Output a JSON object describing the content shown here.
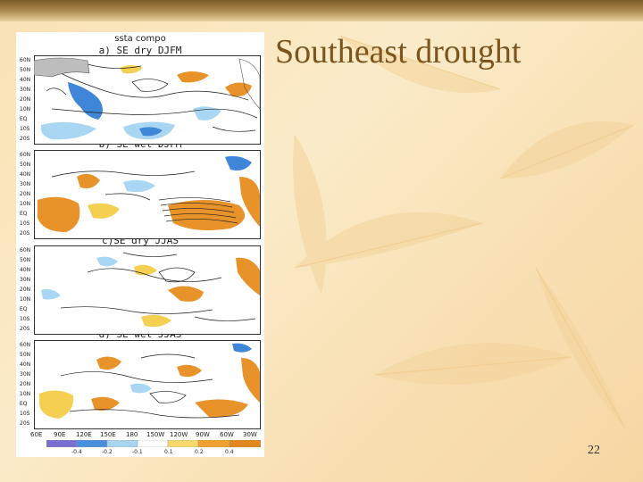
{
  "slide": {
    "title": "Southeast drought",
    "page_number": "22"
  },
  "figure": {
    "heading": "ssta compo",
    "panels": [
      {
        "label": "a) SE dry DJFM"
      },
      {
        "label": "b) SE wet DJFM"
      },
      {
        "label": "c)SE dry JJAS"
      },
      {
        "label": "d) SE wet JJAS"
      }
    ],
    "lat_labels": [
      "60N",
      "50N",
      "40N",
      "30N",
      "20N",
      "10N",
      "EQ",
      "10S",
      "20S"
    ],
    "lon_labels": [
      "60E",
      "90E",
      "120E",
      "150E",
      "180",
      "150W",
      "120W",
      "90W",
      "60W",
      "30W"
    ],
    "colorbar": {
      "ticks": [
        "-0.4",
        "-0.2",
        "-0.1",
        "0.1",
        "0.2",
        "0.4"
      ],
      "colors": [
        "#7a6fd0",
        "#4a8fdc",
        "#a8d4f0",
        "#ffffff",
        "#f6d86a",
        "#f0a030",
        "#e2861e"
      ]
    },
    "shading": {
      "warm": "#e8922a",
      "warm_light": "#f4cf52",
      "cool": "#3f86d8",
      "cool_light": "#a9d6f2"
    }
  }
}
